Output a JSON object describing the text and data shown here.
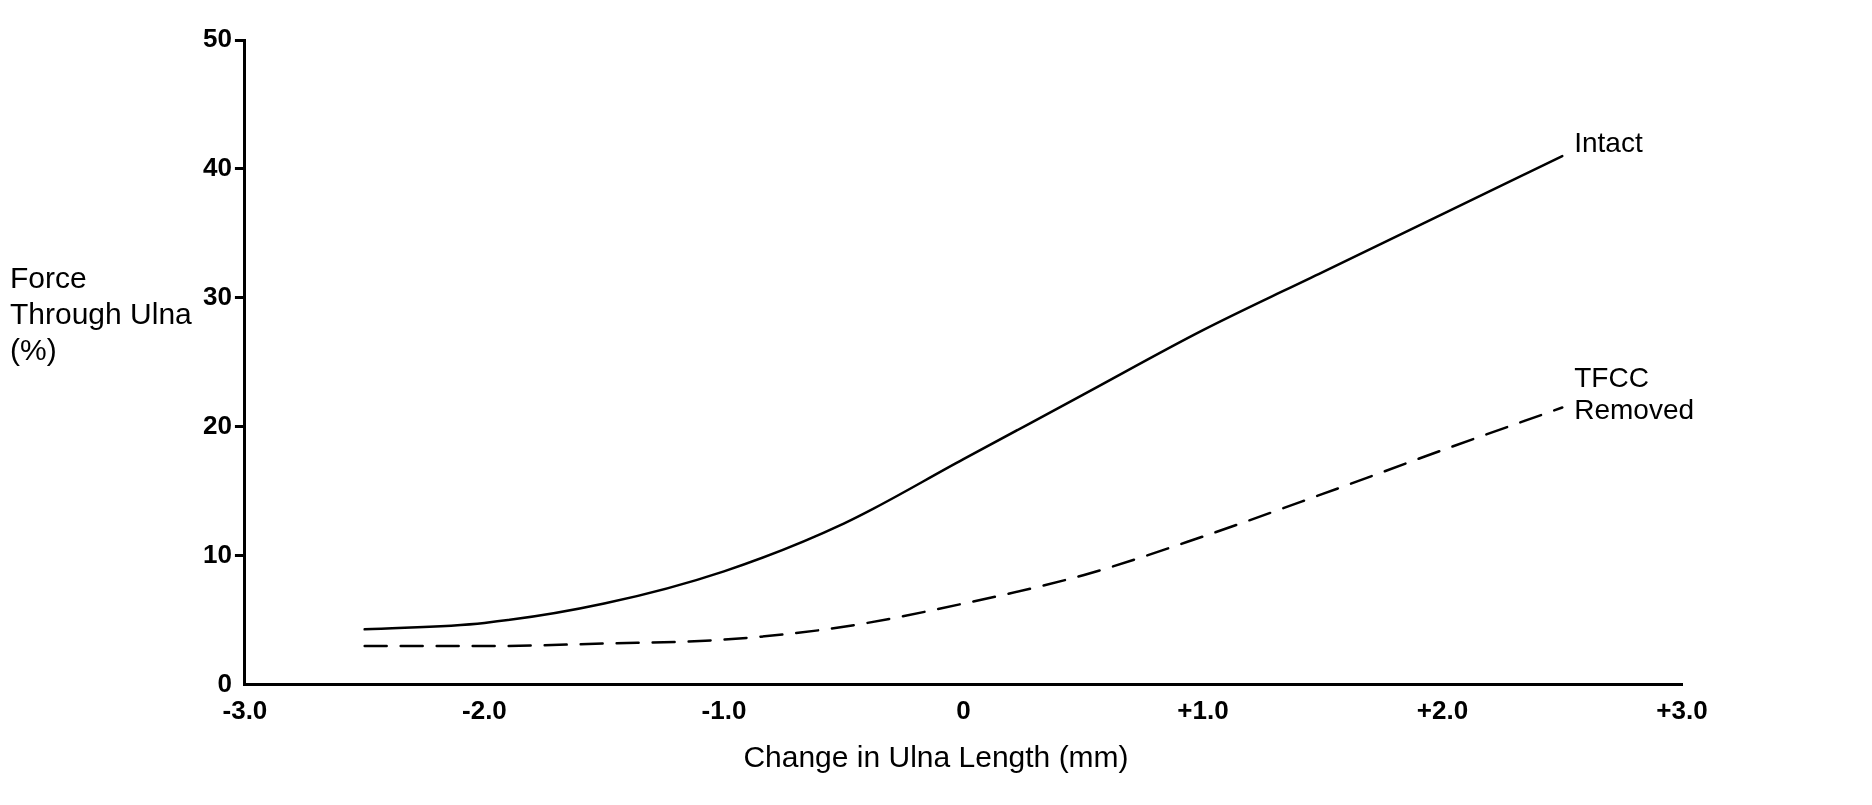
{
  "chart_data": {
    "type": "line",
    "xlabel": "Change in Ulna Length (mm)",
    "ylabel": "Force Through Ulna (%)",
    "x": [
      -2.5,
      -2.0,
      -1.5,
      -1.0,
      -0.5,
      0,
      0.5,
      1.0,
      1.5,
      2.0,
      2.5
    ],
    "xlim": [
      -3,
      3
    ],
    "xticks": [
      {
        "value": -3,
        "label": "-3.0"
      },
      {
        "value": -2,
        "label": "-2.0"
      },
      {
        "value": -1,
        "label": "-1.0"
      },
      {
        "value": 0,
        "label": "0"
      },
      {
        "value": 1,
        "label": "+1.0"
      },
      {
        "value": 2,
        "label": "+2.0"
      },
      {
        "value": 3,
        "label": "+3.0"
      }
    ],
    "ylim": [
      0,
      50
    ],
    "yticks": [
      0,
      10,
      20,
      30,
      40,
      50
    ],
    "grid": false,
    "legend": false,
    "marker": "none",
    "series": [
      {
        "name": "Intact",
        "color": "#000000",
        "line_style": "solid",
        "values": [
          4.3,
          4.8,
          6.3,
          8.8,
          12.5,
          17.5,
          22.5,
          27.5,
          32,
          36.5,
          41
        ]
      },
      {
        "name": "TFCC Removed",
        "color": "#000000",
        "line_style": "dashed",
        "values": [
          3.0,
          3.0,
          3.2,
          3.5,
          4.5,
          6.3,
          8.5,
          11.5,
          14.8,
          18.2,
          21.5
        ]
      }
    ]
  }
}
